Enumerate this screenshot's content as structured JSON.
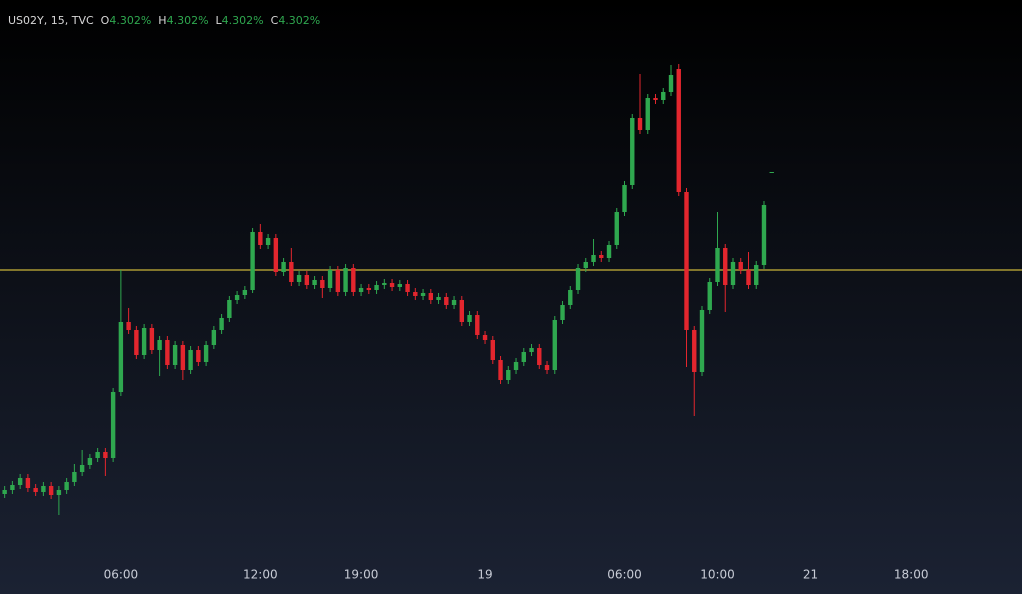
{
  "chart_data": {
    "type": "candlestick",
    "symbol": "US02Y, 15, TVC",
    "ohlc_legend": [
      {
        "key": "O",
        "value": "4.302%"
      },
      {
        "key": "H",
        "value": "4.302%"
      },
      {
        "key": "L",
        "value": "4.302%"
      },
      {
        "key": "C",
        "value": "4.302%"
      }
    ],
    "up_color": "#2fa84f",
    "down_color": "#e3262e",
    "hline_color": "#c9b43a",
    "hline": 4.253,
    "ylim": [
      4.108,
      4.388
    ],
    "xlim": [
      -0.6,
      131.3
    ],
    "xticks": [
      {
        "value": 15,
        "label": "06:00"
      },
      {
        "value": 33,
        "label": "12:00"
      },
      {
        "value": 46,
        "label": "19:00"
      },
      {
        "value": 62,
        "label": "19"
      },
      {
        "value": 80,
        "label": "06:00"
      },
      {
        "value": 92,
        "label": "10:00"
      },
      {
        "value": 104,
        "label": "21"
      },
      {
        "value": 117,
        "label": "18:00"
      }
    ],
    "open": [
      4.141,
      4.143,
      4.1455,
      4.149,
      4.144,
      4.142,
      4.145,
      4.1405,
      4.143,
      4.147,
      4.152,
      4.1555,
      4.159,
      4.162,
      4.159,
      4.192,
      4.227,
      4.223,
      4.2105,
      4.224,
      4.213,
      4.218,
      4.2055,
      4.2155,
      4.203,
      4.213,
      4.207,
      4.2155,
      4.223,
      4.229,
      4.238,
      4.2405,
      4.243,
      4.272,
      4.2655,
      4.269,
      4.252,
      4.257,
      4.247,
      4.2505,
      4.2455,
      4.248,
      4.244,
      4.253,
      4.242,
      4.254,
      4.242,
      4.244,
      4.243,
      4.2455,
      4.2465,
      4.2445,
      4.246,
      4.242,
      4.24,
      4.2415,
      4.238,
      4.2395,
      4.2355,
      4.238,
      4.227,
      4.2305,
      4.2205,
      4.218,
      4.208,
      4.198,
      4.203,
      4.207,
      4.212,
      4.214,
      4.2055,
      4.203,
      4.228,
      4.2355,
      4.243,
      4.254,
      4.257,
      4.2605,
      4.259,
      4.2655,
      4.282,
      4.2955,
      4.329,
      4.323,
      4.339,
      4.338,
      4.342,
      4.3535,
      4.292,
      4.223,
      4.202,
      4.233,
      4.247,
      4.264,
      4.2455,
      4.257,
      4.253,
      4.2455,
      4.2555,
      4.302
    ],
    "high": [
      4.145,
      4.1475,
      4.151,
      4.151,
      4.146,
      4.147,
      4.147,
      4.145,
      4.149,
      4.156,
      4.163,
      4.161,
      4.164,
      4.164,
      4.194,
      4.253,
      4.234,
      4.225,
      4.226,
      4.226,
      4.22,
      4.22,
      4.2175,
      4.2175,
      4.215,
      4.215,
      4.2175,
      4.225,
      4.231,
      4.24,
      4.2425,
      4.245,
      4.274,
      4.276,
      4.271,
      4.271,
      4.259,
      4.264,
      4.2525,
      4.2525,
      4.25,
      4.25,
      4.255,
      4.255,
      4.256,
      4.256,
      4.246,
      4.246,
      4.2475,
      4.2485,
      4.2485,
      4.248,
      4.248,
      4.244,
      4.2435,
      4.2435,
      4.2415,
      4.2415,
      4.24,
      4.24,
      4.2325,
      4.2325,
      4.2225,
      4.22,
      4.21,
      4.205,
      4.209,
      4.214,
      4.216,
      4.216,
      4.2075,
      4.23,
      4.2375,
      4.245,
      4.256,
      4.259,
      4.2685,
      4.2625,
      4.2675,
      4.284,
      4.2975,
      4.331,
      4.351,
      4.341,
      4.341,
      4.344,
      4.3555,
      4.356,
      4.294,
      4.225,
      4.235,
      4.249,
      4.282,
      4.266,
      4.259,
      4.259,
      4.262,
      4.2575,
      4.2875,
      4.302
    ],
    "low": [
      4.139,
      4.141,
      4.1435,
      4.142,
      4.14,
      4.14,
      4.1385,
      4.1305,
      4.141,
      4.145,
      4.15,
      4.1535,
      4.157,
      4.15,
      4.157,
      4.19,
      4.221,
      4.2085,
      4.2085,
      4.211,
      4.2,
      4.2035,
      4.2035,
      4.198,
      4.201,
      4.205,
      4.205,
      4.2135,
      4.221,
      4.227,
      4.236,
      4.2385,
      4.2415,
      4.2635,
      4.2635,
      4.25,
      4.25,
      4.245,
      4.245,
      4.2435,
      4.2435,
      4.239,
      4.242,
      4.24,
      4.24,
      4.24,
      4.24,
      4.241,
      4.241,
      4.2435,
      4.2425,
      4.2425,
      4.24,
      4.238,
      4.238,
      4.236,
      4.236,
      4.2335,
      4.2335,
      4.225,
      4.225,
      4.2185,
      4.216,
      4.206,
      4.196,
      4.196,
      4.201,
      4.205,
      4.21,
      4.2035,
      4.201,
      4.201,
      4.226,
      4.2335,
      4.241,
      4.252,
      4.255,
      4.257,
      4.257,
      4.2635,
      4.28,
      4.2935,
      4.321,
      4.321,
      4.336,
      4.336,
      4.34,
      4.29,
      4.2045,
      4.18,
      4.2,
      4.231,
      4.245,
      4.232,
      4.2435,
      4.251,
      4.2435,
      4.2435,
      4.2535,
      4.302
    ],
    "close": [
      4.143,
      4.1455,
      4.149,
      4.144,
      4.142,
      4.145,
      4.1405,
      4.143,
      4.147,
      4.152,
      4.1555,
      4.159,
      4.162,
      4.159,
      4.192,
      4.227,
      4.223,
      4.2105,
      4.224,
      4.213,
      4.218,
      4.2055,
      4.2155,
      4.203,
      4.213,
      4.207,
      4.2155,
      4.223,
      4.229,
      4.238,
      4.2405,
      4.243,
      4.272,
      4.2655,
      4.269,
      4.252,
      4.257,
      4.247,
      4.2505,
      4.2455,
      4.248,
      4.244,
      4.253,
      4.242,
      4.254,
      4.242,
      4.244,
      4.243,
      4.2455,
      4.2465,
      4.2445,
      4.246,
      4.242,
      4.24,
      4.2415,
      4.238,
      4.2395,
      4.2355,
      4.238,
      4.227,
      4.2305,
      4.2205,
      4.218,
      4.208,
      4.198,
      4.203,
      4.207,
      4.212,
      4.214,
      4.2055,
      4.203,
      4.228,
      4.2355,
      4.243,
      4.254,
      4.257,
      4.2605,
      4.259,
      4.2655,
      4.282,
      4.2955,
      4.329,
      4.323,
      4.339,
      4.338,
      4.342,
      4.3505,
      4.292,
      4.223,
      4.202,
      4.233,
      4.247,
      4.264,
      4.2455,
      4.257,
      4.253,
      4.2455,
      4.2555,
      4.2855,
      4.302
    ]
  }
}
